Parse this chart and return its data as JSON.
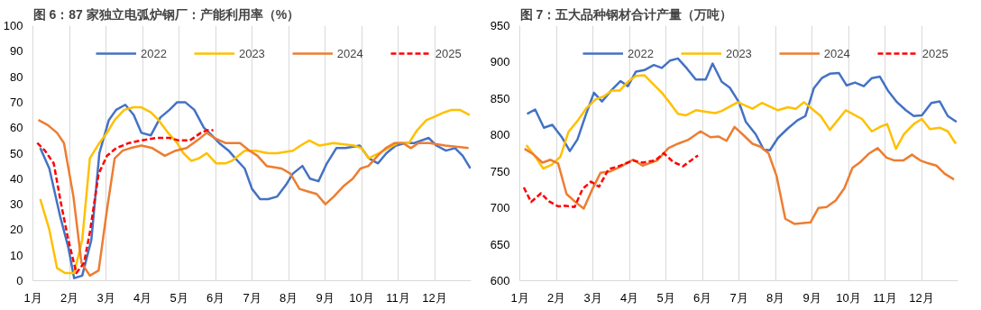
{
  "chart_data": [
    {
      "type": "line",
      "title": "图 6：87 家独立电弧炉钢厂：产能利用率（%）",
      "xlim": [
        1,
        13
      ],
      "xticks": [
        {
          "value": 1,
          "label": "1月"
        },
        {
          "value": 2,
          "label": "2月"
        },
        {
          "value": 3,
          "label": "3月"
        },
        {
          "value": 4,
          "label": "4月"
        },
        {
          "value": 5,
          "label": "5月"
        },
        {
          "value": 6,
          "label": "6月"
        },
        {
          "value": 7,
          "label": "7月"
        },
        {
          "value": 8,
          "label": "8月"
        },
        {
          "value": 9,
          "label": "9月"
        },
        {
          "value": 10,
          "label": "10月"
        },
        {
          "value": 11,
          "label": "11月"
        },
        {
          "value": 12,
          "label": "12月"
        }
      ],
      "ylim": [
        0,
        100
      ],
      "yticks": [
        0,
        10,
        20,
        30,
        40,
        50,
        60,
        70,
        80,
        90,
        100
      ],
      "grid": "x",
      "legend": "top",
      "series": [
        {
          "name": "2022",
          "color": "#4472c4",
          "line_style": "solid",
          "x": [
            1.2,
            1.45,
            1.75,
            1.97,
            2.13,
            2.35,
            2.6,
            2.82,
            3.08,
            3.28,
            3.53,
            3.76,
            3.97,
            4.23,
            4.49,
            4.74,
            4.95,
            5.17,
            5.42,
            5.68,
            5.9,
            6.1,
            6.36,
            6.54,
            6.8,
            7.0,
            7.22,
            7.44,
            7.69,
            7.95,
            8.12,
            8.38,
            8.59,
            8.82,
            9.05,
            9.31,
            9.56,
            9.95,
            10.2,
            10.45,
            10.68,
            10.94,
            11.2,
            11.45,
            11.84,
            12.05,
            12.31,
            12.56,
            12.77,
            12.98
          ],
          "values": [
            52,
            44,
            25,
            13,
            1,
            2,
            16,
            50,
            63,
            67,
            69,
            65,
            58,
            57,
            64,
            67,
            70,
            70,
            67,
            60,
            57,
            54,
            51,
            48,
            44,
            36,
            32,
            32,
            33,
            38,
            42,
            45,
            40,
            39,
            46,
            52,
            52,
            53,
            48,
            46,
            50,
            53,
            54,
            54,
            56,
            53,
            51,
            52,
            49,
            44
          ]
        },
        {
          "name": "2023",
          "color": "#ffc000",
          "line_style": "solid",
          "x": [
            1.2,
            1.45,
            1.66,
            1.88,
            2.13,
            2.35,
            2.56,
            2.82,
            3.03,
            3.24,
            3.5,
            3.76,
            3.97,
            4.23,
            4.44,
            4.7,
            4.95,
            5.12,
            5.34,
            5.55,
            5.76,
            6.02,
            6.27,
            6.45,
            6.8,
            7.1,
            7.44,
            7.69,
            8.12,
            8.33,
            8.57,
            8.85,
            9.23,
            9.79,
            10.0,
            10.2,
            10.47,
            10.73,
            11.0,
            11.3,
            11.52,
            11.78,
            11.95,
            12.26,
            12.47,
            12.69,
            12.96
          ],
          "values": [
            32,
            20,
            5,
            3,
            3,
            16,
            48,
            54,
            58,
            63,
            67,
            68,
            68,
            66,
            63,
            58,
            54,
            50,
            47,
            48,
            50,
            46,
            46,
            47,
            51,
            51,
            50,
            50,
            51,
            53,
            55,
            53,
            54,
            53,
            52,
            48,
            50,
            52,
            54,
            54,
            59,
            63,
            64,
            66,
            67,
            67,
            65
          ]
        },
        {
          "name": "2024",
          "color": "#ed7d31",
          "line_style": "solid",
          "x": [
            1.15,
            1.41,
            1.66,
            1.85,
            2.11,
            2.33,
            2.56,
            2.8,
            3.03,
            3.24,
            3.46,
            3.67,
            3.97,
            4.27,
            4.61,
            4.91,
            5.21,
            5.5,
            5.76,
            5.97,
            6.27,
            6.5,
            6.67,
            6.93,
            7.15,
            7.4,
            7.81,
            8.05,
            8.3,
            8.53,
            8.77,
            9.01,
            9.24,
            9.5,
            9.76,
            9.97,
            10.19,
            10.44,
            10.66,
            10.91,
            11.13,
            11.35,
            11.56,
            11.86,
            12.29,
            12.93
          ],
          "values": [
            63,
            61,
            58,
            54,
            33,
            7,
            2,
            4,
            28,
            48,
            51,
            52,
            53,
            52,
            49,
            51,
            52,
            55,
            58,
            56,
            54,
            54,
            54,
            51,
            49,
            45,
            44,
            42,
            36,
            35,
            34,
            30,
            33,
            37,
            40,
            44,
            45,
            49,
            52,
            54,
            54,
            52,
            54,
            54,
            53,
            52
          ]
        },
        {
          "name": "2025",
          "color": "#ff0000",
          "line_style": "dashed",
          "x": [
            1.12,
            1.33,
            1.57,
            1.76,
            1.97,
            2.19,
            2.4,
            2.56,
            2.8,
            3.03,
            3.28,
            3.63,
            3.97,
            4.4,
            4.74,
            5.0,
            5.3,
            5.6,
            5.76,
            5.94
          ],
          "values": [
            54,
            51,
            46,
            31,
            16,
            3,
            7,
            19,
            42,
            49,
            52,
            54,
            55,
            56,
            56,
            55,
            55,
            58,
            59,
            59
          ]
        }
      ]
    },
    {
      "type": "line",
      "title": "图 7：五大品种钢材合计产量（万吨）",
      "xlim": [
        1,
        13
      ],
      "xticks": [
        {
          "value": 1,
          "label": "1月"
        },
        {
          "value": 2,
          "label": "2月"
        },
        {
          "value": 3,
          "label": "3月"
        },
        {
          "value": 4,
          "label": "4月"
        },
        {
          "value": 5,
          "label": "5月"
        },
        {
          "value": 6,
          "label": "6月"
        },
        {
          "value": 7,
          "label": "7月"
        },
        {
          "value": 8,
          "label": "8月"
        },
        {
          "value": 9,
          "label": "9月"
        },
        {
          "value": 10,
          "label": "10月"
        },
        {
          "value": 11,
          "label": "11月"
        },
        {
          "value": 12,
          "label": "12月"
        }
      ],
      "ylim": [
        600,
        950
      ],
      "yticks": [
        600,
        650,
        700,
        750,
        800,
        850,
        900,
        950
      ],
      "grid": "x",
      "legend": "top",
      "series": [
        {
          "name": "2022",
          "color": "#4472c4",
          "line_style": "solid",
          "x": [
            1.2,
            1.42,
            1.66,
            1.89,
            2.15,
            2.37,
            2.58,
            2.81,
            3.03,
            3.25,
            3.52,
            3.76,
            3.96,
            4.18,
            4.41,
            4.67,
            4.89,
            5.11,
            5.33,
            5.58,
            5.82,
            6.09,
            6.28,
            6.53,
            6.75,
            7.0,
            7.19,
            7.46,
            7.68,
            7.85,
            8.07,
            8.34,
            8.6,
            8.82,
            9.05,
            9.27,
            9.49,
            9.74,
            9.95,
            10.18,
            10.42,
            10.64,
            10.86,
            11.08,
            11.33,
            11.57,
            11.79,
            12.01,
            12.27,
            12.5,
            12.72,
            12.96
          ],
          "values": [
            829,
            835,
            810,
            814,
            797,
            778,
            794,
            828,
            858,
            846,
            862,
            874,
            867,
            887,
            889,
            896,
            892,
            902,
            905,
            891,
            876,
            876,
            898,
            873,
            865,
            845,
            818,
            801,
            780,
            779,
            796,
            809,
            820,
            826,
            864,
            878,
            884,
            885,
            868,
            872,
            867,
            878,
            880,
            861,
            845,
            834,
            826,
            827,
            844,
            846,
            826,
            818
          ]
        },
        {
          "name": "2023",
          "color": "#ffc000",
          "line_style": "solid",
          "x": [
            1.18,
            1.4,
            1.64,
            1.87,
            2.11,
            2.33,
            2.59,
            2.81,
            3.08,
            3.3,
            3.52,
            3.74,
            3.96,
            4.18,
            4.41,
            4.63,
            4.89,
            5.11,
            5.33,
            5.55,
            5.82,
            6.09,
            6.35,
            6.53,
            6.97,
            7.37,
            7.63,
            8.07,
            8.34,
            8.56,
            8.78,
            9.0,
            9.24,
            9.49,
            9.93,
            10.37,
            10.64,
            10.9,
            11.06,
            11.3,
            11.52,
            11.79,
            12.01,
            12.23,
            12.5,
            12.72,
            12.94
          ],
          "values": [
            786,
            772,
            754,
            759,
            770,
            804,
            820,
            836,
            849,
            853,
            861,
            861,
            873,
            881,
            882,
            871,
            858,
            844,
            829,
            827,
            834,
            832,
            830,
            833,
            845,
            836,
            844,
            834,
            838,
            836,
            845,
            836,
            826,
            807,
            834,
            822,
            805,
            812,
            815,
            781,
            801,
            815,
            822,
            808,
            810,
            805,
            788
          ]
        },
        {
          "name": "2024",
          "color": "#ed7d31",
          "line_style": "solid",
          "x": [
            1.13,
            1.36,
            1.62,
            1.84,
            2.05,
            2.28,
            2.5,
            2.75,
            2.99,
            3.21,
            3.48,
            3.74,
            4.1,
            4.36,
            4.76,
            5.07,
            5.33,
            5.6,
            5.95,
            6.22,
            6.44,
            6.66,
            6.88,
            7.1,
            7.37,
            7.59,
            7.81,
            8.03,
            8.27,
            8.52,
            8.96,
            9.18,
            9.4,
            9.65,
            9.89,
            10.11,
            10.33,
            10.55,
            10.8,
            11.04,
            11.26,
            11.5,
            11.74,
            11.97,
            12.19,
            12.41,
            12.63,
            12.89
          ],
          "values": [
            781,
            774,
            762,
            766,
            761,
            719,
            709,
            699,
            726,
            748,
            750,
            756,
            766,
            758,
            765,
            782,
            788,
            793,
            805,
            797,
            798,
            792,
            811,
            801,
            788,
            784,
            775,
            744,
            685,
            678,
            680,
            700,
            701,
            710,
            727,
            755,
            763,
            774,
            782,
            769,
            765,
            765,
            773,
            765,
            761,
            758,
            747,
            739
          ]
        },
        {
          "name": "2025",
          "color": "#ff0000",
          "line_style": "dashed",
          "x": [
            1.11,
            1.31,
            1.58,
            1.8,
            2.05,
            2.24,
            2.5,
            2.72,
            2.95,
            3.17,
            3.43,
            3.7,
            4.1,
            4.36,
            4.71,
            4.94,
            5.2,
            5.47,
            5.69,
            5.88
          ],
          "values": [
            728,
            708,
            720,
            709,
            702,
            703,
            701,
            726,
            736,
            729,
            753,
            757,
            765,
            762,
            765,
            775,
            763,
            757,
            765,
            772
          ]
        }
      ]
    }
  ]
}
